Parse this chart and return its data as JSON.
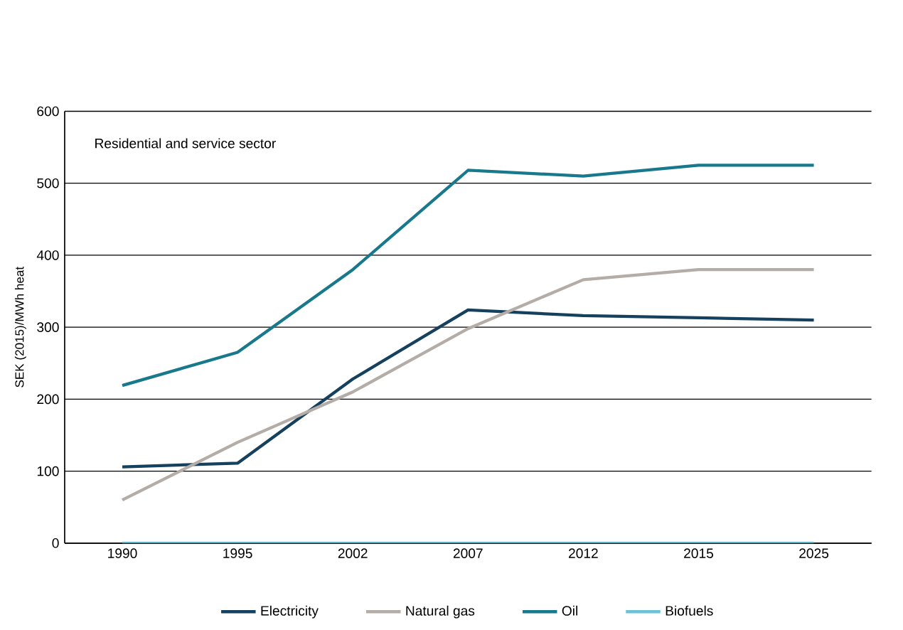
{
  "chart_data": {
    "type": "line",
    "ylabel": "SEK (2015)/MWh heat",
    "annotations": [
      "Residential and service sector"
    ],
    "categories": [
      "1990",
      "1995",
      "2002",
      "2007",
      "2012",
      "2015",
      "2025"
    ],
    "series": [
      {
        "name": "Electricity",
        "color": "#16415e",
        "values": [
          106,
          111,
          228,
          324,
          316,
          313,
          310
        ]
      },
      {
        "name": "Natural gas",
        "color": "#b3aca7",
        "values": [
          60,
          140,
          210,
          298,
          366,
          380,
          380
        ]
      },
      {
        "name": "Oil",
        "color": "#17798b",
        "values": [
          219,
          265,
          380,
          518,
          510,
          525,
          525
        ]
      },
      {
        "name": "Biofuels",
        "color": "#6cc3d5",
        "values": [
          0,
          0,
          0,
          0,
          0,
          0,
          0
        ]
      }
    ],
    "ylim": [
      0,
      600
    ],
    "yticks": [
      0,
      100,
      200,
      300,
      400,
      500,
      600
    ],
    "grid": "y",
    "legend": "bottom",
    "marker": "none",
    "line_style": "solid"
  }
}
